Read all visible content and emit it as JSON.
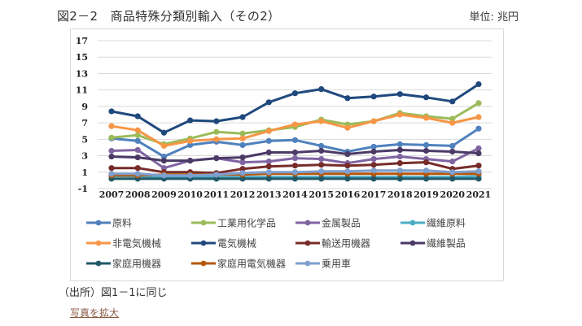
{
  "header": {
    "title": "図2－2　商品特殊分類別輸入（その2）",
    "unit": "単位: 兆円"
  },
  "footer": {
    "source": "（出所）図1－1に同じ",
    "enlarge_link": "写真を拡大"
  },
  "chart_data": {
    "type": "line",
    "title": "商品特殊分類別輸入（その2）",
    "xlabel": "",
    "ylabel": "兆円",
    "ylim": [
      -1,
      17
    ],
    "yticks": [
      -1,
      1,
      3,
      5,
      7,
      9,
      11,
      13,
      15,
      17
    ],
    "grid": true,
    "legend_position": "bottom",
    "x": [
      "2007",
      "2008",
      "2009",
      "2010",
      "2011",
      "2012",
      "2013",
      "2014",
      "2015",
      "2016",
      "2017",
      "2018",
      "2019",
      "2020",
      "2021"
    ],
    "series": [
      {
        "name": "原料",
        "color": "#4F81BD",
        "values": [
          5.1,
          4.8,
          2.9,
          4.3,
          4.7,
          4.3,
          4.8,
          4.9,
          4.2,
          3.5,
          4.1,
          4.4,
          4.3,
          4.2,
          6.3
        ]
      },
      {
        "name": "工業用化学品",
        "color": "#9BBB59",
        "values": [
          5.2,
          5.5,
          4.4,
          5.1,
          5.9,
          5.7,
          6.1,
          6.5,
          7.4,
          6.8,
          7.2,
          8.2,
          7.8,
          7.5,
          9.4
        ]
      },
      {
        "name": "金属製品",
        "color": "#8064A2",
        "values": [
          3.6,
          3.7,
          1.5,
          2.4,
          2.7,
          2.2,
          2.3,
          2.7,
          2.6,
          2.1,
          2.6,
          2.9,
          2.6,
          2.3,
          3.9
        ]
      },
      {
        "name": "繊維原料",
        "color": "#4BACC6",
        "values": [
          0.5,
          0.5,
          0.4,
          0.4,
          0.4,
          0.4,
          0.4,
          0.4,
          0.4,
          0.4,
          0.4,
          0.4,
          0.4,
          0.4,
          0.5
        ]
      },
      {
        "name": "非電気機械",
        "color": "#F79646",
        "values": [
          6.6,
          6.1,
          4.2,
          4.8,
          5.0,
          5.1,
          6.0,
          6.8,
          7.2,
          6.4,
          7.2,
          8.0,
          7.6,
          7.0,
          7.7
        ]
      },
      {
        "name": "電気機械",
        "color": "#1F497D",
        "values": [
          8.4,
          7.8,
          5.8,
          7.3,
          7.2,
          7.7,
          9.5,
          10.6,
          11.1,
          10.0,
          10.2,
          10.5,
          10.1,
          9.6,
          11.7
        ]
      },
      {
        "name": "輸送用機器",
        "color": "#772C2A",
        "values": [
          1.5,
          1.5,
          1.0,
          1.0,
          0.9,
          1.4,
          1.7,
          1.8,
          1.9,
          1.8,
          1.9,
          2.1,
          2.2,
          1.4,
          1.8
        ]
      },
      {
        "name": "繊維製品",
        "color": "#4B3A66",
        "values": [
          2.9,
          2.8,
          2.4,
          2.4,
          2.7,
          2.8,
          3.4,
          3.4,
          3.6,
          3.2,
          3.5,
          3.7,
          3.6,
          3.5,
          3.3
        ]
      },
      {
        "name": "家庭用機器",
        "color": "#215968",
        "values": [
          0.2,
          0.2,
          0.2,
          0.2,
          0.2,
          0.2,
          0.2,
          0.2,
          0.2,
          0.2,
          0.2,
          0.2,
          0.2,
          0.2,
          0.2
        ]
      },
      {
        "name": "家庭用電気機器",
        "color": "#B65708",
        "values": [
          0.6,
          0.6,
          0.7,
          0.7,
          0.7,
          0.7,
          0.8,
          0.8,
          0.8,
          0.8,
          0.8,
          0.8,
          0.8,
          0.8,
          0.8
        ]
      },
      {
        "name": "乗用車",
        "color": "#7F9FCF",
        "values": [
          0.8,
          0.8,
          0.6,
          0.6,
          0.7,
          0.9,
          1.0,
          1.0,
          1.1,
          1.1,
          1.2,
          1.2,
          1.2,
          1.0,
          1.1
        ]
      }
    ]
  }
}
